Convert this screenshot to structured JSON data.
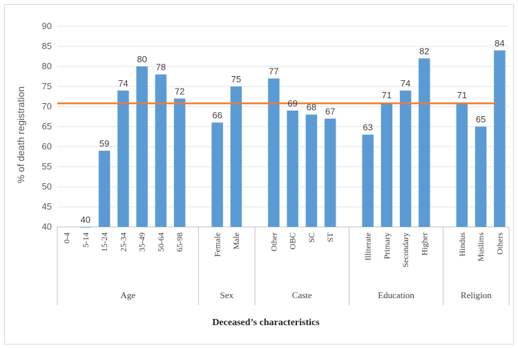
{
  "chart_data": {
    "type": "bar",
    "title": "",
    "ylabel": "% of death registration",
    "xlabel": "Deceased’s characteristics",
    "ylim": [
      40,
      90
    ],
    "yticks": [
      40,
      45,
      50,
      55,
      60,
      65,
      70,
      75,
      80,
      85,
      90
    ],
    "grid": true,
    "bar_color": "#5b9bd5",
    "reference_line": {
      "value": 70.8,
      "color": "#ed7d31"
    },
    "groups": [
      {
        "name": "Age",
        "categories": [
          "0-4",
          "5-14",
          "15-24",
          "25-34",
          "35-49",
          "50-64",
          "65-98"
        ],
        "values": [
          null,
          40,
          59,
          74,
          80,
          78,
          72
        ]
      },
      {
        "name": "Sex",
        "categories": [
          "Female",
          "Male"
        ],
        "values": [
          66,
          75
        ]
      },
      {
        "name": "Caste",
        "categories": [
          "Other",
          "OBC",
          "SC",
          "ST"
        ],
        "values": [
          77,
          69,
          68,
          67
        ]
      },
      {
        "name": "Education",
        "categories": [
          "Illiterate",
          "Primary",
          "Secondary",
          "Higher"
        ],
        "values": [
          63,
          71,
          74,
          82
        ]
      },
      {
        "name": "Religion",
        "categories": [
          "Hindus",
          "Muslims",
          "Others"
        ],
        "values": [
          71,
          65,
          84
        ]
      }
    ]
  }
}
